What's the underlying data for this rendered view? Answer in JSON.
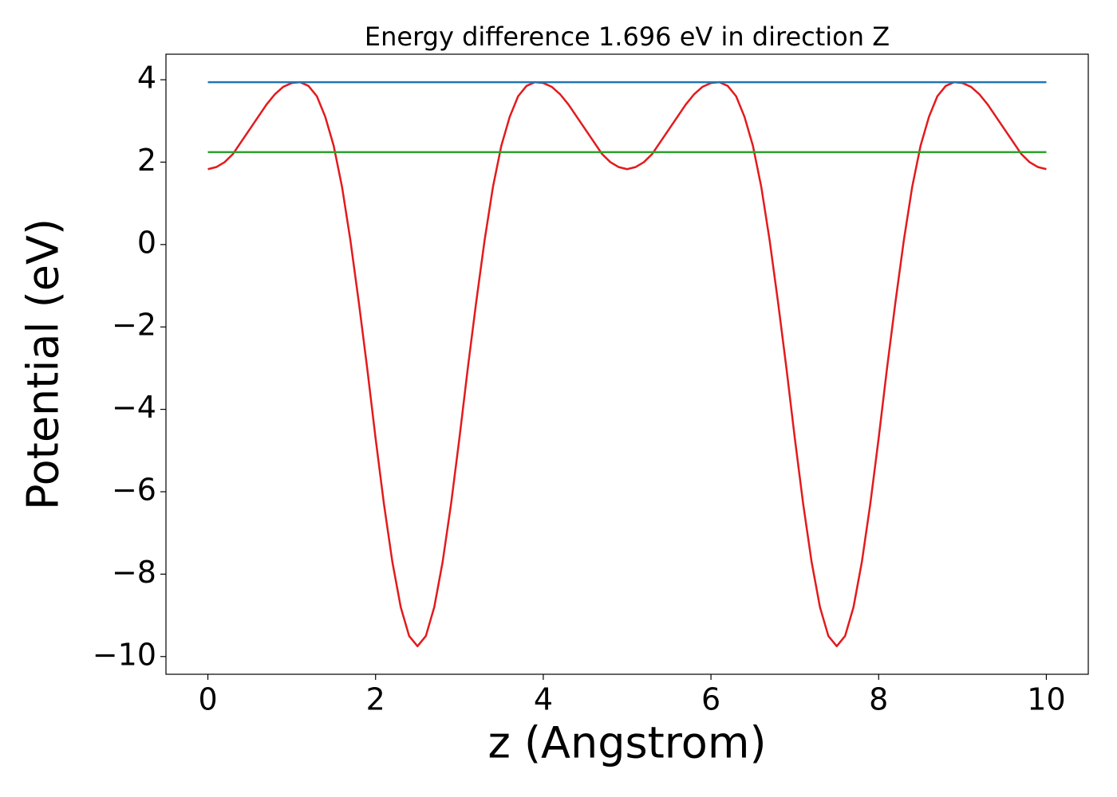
{
  "chart_data": {
    "type": "line",
    "title": "Energy difference 1.696 eV in direction Z",
    "xlabel": "z (Angstrom)",
    "ylabel": "Potential (eV)",
    "xlim": [
      -0.5,
      10.5
    ],
    "ylim": [
      -10.43,
      4.62
    ],
    "xticks": [
      0,
      2,
      4,
      6,
      8,
      10
    ],
    "yticks": [
      {
        "value": -10,
        "label": "−10"
      },
      {
        "value": -8,
        "label": "−8"
      },
      {
        "value": -6,
        "label": "−6"
      },
      {
        "value": -4,
        "label": "−4"
      },
      {
        "value": -2,
        "label": "−2"
      },
      0,
      2,
      4
    ],
    "grid": false,
    "series": [
      {
        "color": "#e31a1c",
        "x": [
          0,
          0.1,
          0.2,
          0.3,
          0.4,
          0.5,
          0.6,
          0.7,
          0.8,
          0.9,
          1,
          1.1,
          1.2,
          1.3,
          1.4,
          1.5,
          1.6,
          1.7,
          1.8,
          1.9,
          2,
          2.1,
          2.2,
          2.3,
          2.4,
          2.5,
          2.6,
          2.7,
          2.8,
          2.9,
          3,
          3.1,
          3.2,
          3.3,
          3.4,
          3.5,
          3.6,
          3.7,
          3.8,
          3.9,
          4,
          4.1,
          4.2,
          4.3,
          4.4,
          4.5,
          4.6,
          4.7,
          4.8,
          4.9,
          5,
          5.1,
          5.2,
          5.3,
          5.4,
          5.5,
          5.6,
          5.7,
          5.8,
          5.9,
          6,
          6.1,
          6.2,
          6.3,
          6.4,
          6.5,
          6.6,
          6.7,
          6.8,
          6.9,
          7,
          7.1,
          7.2,
          7.3,
          7.4,
          7.5,
          7.6,
          7.7,
          7.8,
          7.9,
          8,
          8.1,
          8.2,
          8.3,
          8.4,
          8.5,
          8.6,
          8.7,
          8.8,
          8.9,
          9,
          9.1,
          9.2,
          9.3,
          9.4,
          9.5,
          9.6,
          9.7,
          9.8,
          9.9,
          10
        ],
        "values": [
          1.83,
          1.88,
          2.0,
          2.2,
          2.5,
          2.8,
          3.1,
          3.4,
          3.65,
          3.83,
          3.92,
          3.94,
          3.85,
          3.6,
          3.1,
          2.4,
          1.4,
          0.1,
          -1.4,
          -3.0,
          -4.7,
          -6.3,
          -7.7,
          -8.8,
          -9.5,
          -9.75,
          -9.5,
          -8.8,
          -7.7,
          -6.3,
          -4.7,
          -3.0,
          -1.4,
          0.1,
          1.4,
          2.4,
          3.1,
          3.6,
          3.85,
          3.94,
          3.92,
          3.83,
          3.65,
          3.4,
          3.1,
          2.8,
          2.5,
          2.2,
          2.0,
          1.88,
          1.83,
          1.88,
          2.0,
          2.2,
          2.5,
          2.8,
          3.1,
          3.4,
          3.65,
          3.83,
          3.92,
          3.94,
          3.85,
          3.6,
          3.1,
          2.4,
          1.4,
          0.1,
          -1.4,
          -3.0,
          -4.7,
          -6.3,
          -7.7,
          -8.8,
          -9.5,
          -9.75,
          -9.5,
          -8.8,
          -7.7,
          -6.3,
          -4.7,
          -3.0,
          -1.4,
          0.1,
          1.4,
          2.4,
          3.1,
          3.6,
          3.85,
          3.94,
          3.92,
          3.83,
          3.65,
          3.4,
          3.1,
          2.8,
          2.5,
          2.2,
          2.0,
          1.88,
          1.83
        ]
      },
      {
        "color": "#1f77b4",
        "x": [
          0,
          10
        ],
        "values": [
          3.94,
          3.94
        ]
      },
      {
        "color": "#2ca02c",
        "x": [
          0,
          10
        ],
        "values": [
          2.244,
          2.244
        ]
      }
    ]
  }
}
